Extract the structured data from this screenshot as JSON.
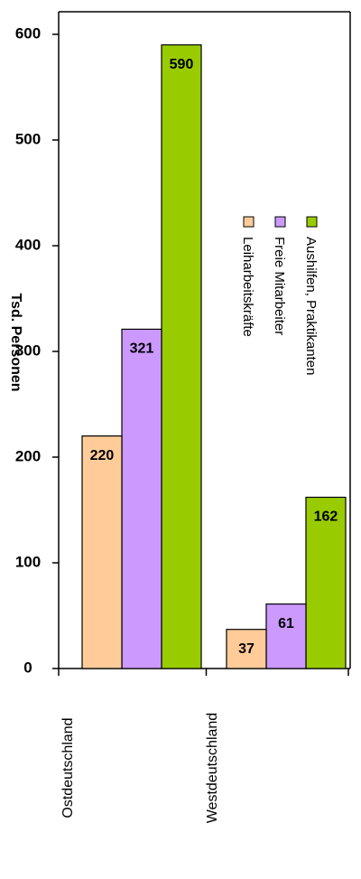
{
  "chart_data": {
    "type": "bar",
    "orientation": "horizontal",
    "categories": [
      "Ostdeutschland",
      "Westdeutschland"
    ],
    "series": [
      {
        "name": "Aushilfen, Praktikanten",
        "values": [
          162,
          590
        ],
        "color": "#99cc00"
      },
      {
        "name": "Freie Mitarbeiter",
        "values": [
          61,
          321
        ],
        "color": "#cc99ff"
      },
      {
        "name": "Leiharbeitskräfte",
        "values": [
          37,
          220
        ],
        "color": "#ffcc99"
      }
    ],
    "value_axis": {
      "label": "Tsd. Personen",
      "range": [
        0,
        600
      ],
      "ticks": [
        0,
        100,
        200,
        300,
        400,
        500,
        600
      ]
    },
    "legend": "inside-top",
    "grid": false
  }
}
